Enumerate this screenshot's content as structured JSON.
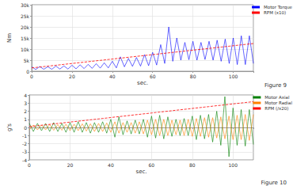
{
  "chart_data": [
    {
      "type": "line",
      "y_label": "Nm",
      "x_label": "sec.",
      "annotation": "Figure 9",
      "x": [
        0,
        2,
        4,
        6,
        8,
        10,
        12,
        14,
        16,
        18,
        20,
        22,
        24,
        26,
        28,
        30,
        32,
        34,
        36,
        38,
        40,
        42,
        44,
        46,
        48,
        50,
        52,
        54,
        56,
        58,
        60,
        62,
        64,
        66,
        68,
        70,
        72,
        74,
        76,
        78,
        80,
        82,
        84,
        86,
        88,
        90,
        92,
        94,
        96,
        98,
        100,
        102,
        104,
        106,
        108,
        110
      ],
      "series": [
        {
          "name": "Motor Torque",
          "color": "#0000ff",
          "line_style": "solid",
          "values": [
            2000,
            800,
            2100,
            900,
            2000,
            900,
            2300,
            1000,
            2400,
            1000,
            2700,
            1100,
            2900,
            1200,
            3100,
            1300,
            3400,
            1400,
            3800,
            1500,
            4500,
            1500,
            6500,
            2000,
            5800,
            2200,
            6200,
            2300,
            7500,
            2500,
            8500,
            2800,
            12000,
            3500,
            20000,
            4500,
            15000,
            5000,
            13000,
            5200,
            13500,
            5000,
            13000,
            5300,
            13500,
            5000,
            14000,
            4500,
            14500,
            3500,
            15000,
            3000,
            16000,
            3000,
            16000,
            3500
          ]
        },
        {
          "name": "RPM (x10)",
          "color": "#ff0000",
          "line_style": "dashed",
          "values": [
            1500,
            1700,
            1900,
            2100,
            2300,
            2500,
            2700,
            2900,
            3100,
            3300,
            3500,
            3700,
            3900,
            4100,
            4300,
            4500,
            4700,
            4900,
            5100,
            5300,
            5500,
            5700,
            5900,
            6100,
            6300,
            6500,
            6700,
            6900,
            7100,
            7300,
            7500,
            7700,
            7900,
            8100,
            8300,
            8500,
            8700,
            8900,
            9100,
            9300,
            9500,
            9700,
            9900,
            10100,
            10300,
            10500,
            10700,
            10900,
            11100,
            11300,
            11500,
            11700,
            11900,
            12100,
            12300,
            12500
          ]
        }
      ],
      "xlim": [
        0,
        110
      ],
      "xticks": [
        0,
        20,
        40,
        60,
        80,
        100
      ],
      "ylim": [
        0,
        30000
      ],
      "yticks": [
        0,
        {
          "value": 5000,
          "label": "5k"
        },
        {
          "value": 10000,
          "label": "10k"
        },
        {
          "value": 15000,
          "label": "15k"
        },
        {
          "value": 20000,
          "label": "20k"
        },
        {
          "value": 25000,
          "label": "25k"
        },
        {
          "value": 30000,
          "label": "30k"
        }
      ],
      "grid": true,
      "legend": "top-right"
    },
    {
      "type": "line",
      "y_label": "g's",
      "x_label": "sec.",
      "annotation": "Figure 10",
      "x": [
        0,
        2,
        4,
        6,
        8,
        10,
        12,
        14,
        16,
        18,
        20,
        22,
        24,
        26,
        28,
        30,
        32,
        34,
        36,
        38,
        40,
        42,
        44,
        46,
        48,
        50,
        52,
        54,
        56,
        58,
        60,
        62,
        64,
        66,
        68,
        70,
        72,
        74,
        76,
        78,
        80,
        82,
        84,
        86,
        88,
        90,
        92,
        94,
        96,
        98,
        100,
        102,
        104,
        106,
        108,
        110
      ],
      "series": [
        {
          "name": "Motor Axial",
          "color": "#008000",
          "line_style": "solid",
          "values": [
            0.5,
            -0.5,
            0.5,
            -0.4,
            0.5,
            -0.5,
            0.6,
            -0.5,
            0.5,
            -0.6,
            0.6,
            -0.6,
            0.7,
            -0.6,
            0.6,
            -0.7,
            0.6,
            -0.6,
            0.7,
            -0.7,
            1.0,
            -1.2,
            1.3,
            -0.9,
            0.8,
            -0.8,
            0.9,
            -0.8,
            1.0,
            -1.2,
            1.4,
            -1.3,
            1.5,
            -1.4,
            1.3,
            -1.1,
            1.0,
            -1.0,
            1.1,
            -1.0,
            1.4,
            -1.5,
            1.5,
            -1.4,
            1.6,
            -1.8,
            2.0,
            -2.2,
            3.8,
            -3.6,
            2.4,
            -2.2,
            2.2,
            -2.3,
            2.2,
            -2.1
          ]
        },
        {
          "name": "Motor Radial",
          "color": "#ff8000",
          "line_style": "solid",
          "values": [
            -0.3,
            0.3,
            -0.3,
            0.3,
            -0.3,
            0.35,
            -0.35,
            0.35,
            -0.35,
            0.4,
            -0.4,
            0.4,
            -0.4,
            0.45,
            -0.45,
            0.45,
            -0.5,
            0.5,
            -0.5,
            0.55,
            -0.6,
            0.7,
            -0.7,
            0.6,
            -0.6,
            0.6,
            -0.7,
            0.7,
            -0.8,
            0.9,
            -0.9,
            1.0,
            -1.0,
            1.0,
            -1.0,
            0.9,
            -0.9,
            0.9,
            -1.0,
            1.0,
            -1.1,
            1.1,
            -1.1,
            1.2,
            -1.2,
            1.2,
            -1.3,
            1.3,
            -1.4,
            1.4,
            -1.5,
            1.5,
            -1.5,
            1.6,
            -1.6,
            1.6
          ]
        },
        {
          "name": "RPM (/x20)",
          "color": "#ff0000",
          "line_style": "dashed",
          "values": [
            0.1,
            0.16,
            0.21,
            0.27,
            0.32,
            0.38,
            0.44,
            0.49,
            0.55,
            0.6,
            0.66,
            0.72,
            0.77,
            0.83,
            0.88,
            0.94,
            1.0,
            1.05,
            1.11,
            1.16,
            1.22,
            1.28,
            1.33,
            1.39,
            1.44,
            1.5,
            1.56,
            1.61,
            1.67,
            1.72,
            1.78,
            1.84,
            1.89,
            1.95,
            2.0,
            2.06,
            2.12,
            2.17,
            2.23,
            2.28,
            2.34,
            2.4,
            2.45,
            2.51,
            2.56,
            2.62,
            2.68,
            2.73,
            2.79,
            2.84,
            2.9,
            2.96,
            3.01,
            3.07,
            3.12,
            3.18
          ]
        }
      ],
      "xlim": [
        0,
        110
      ],
      "xticks": [
        0,
        20,
        40,
        60,
        80,
        100
      ],
      "ylim": [
        -4,
        4
      ],
      "yticks": [
        -4,
        -3,
        -2,
        -1,
        0,
        1,
        2,
        3,
        4
      ],
      "grid": true,
      "legend": "top-right"
    }
  ]
}
